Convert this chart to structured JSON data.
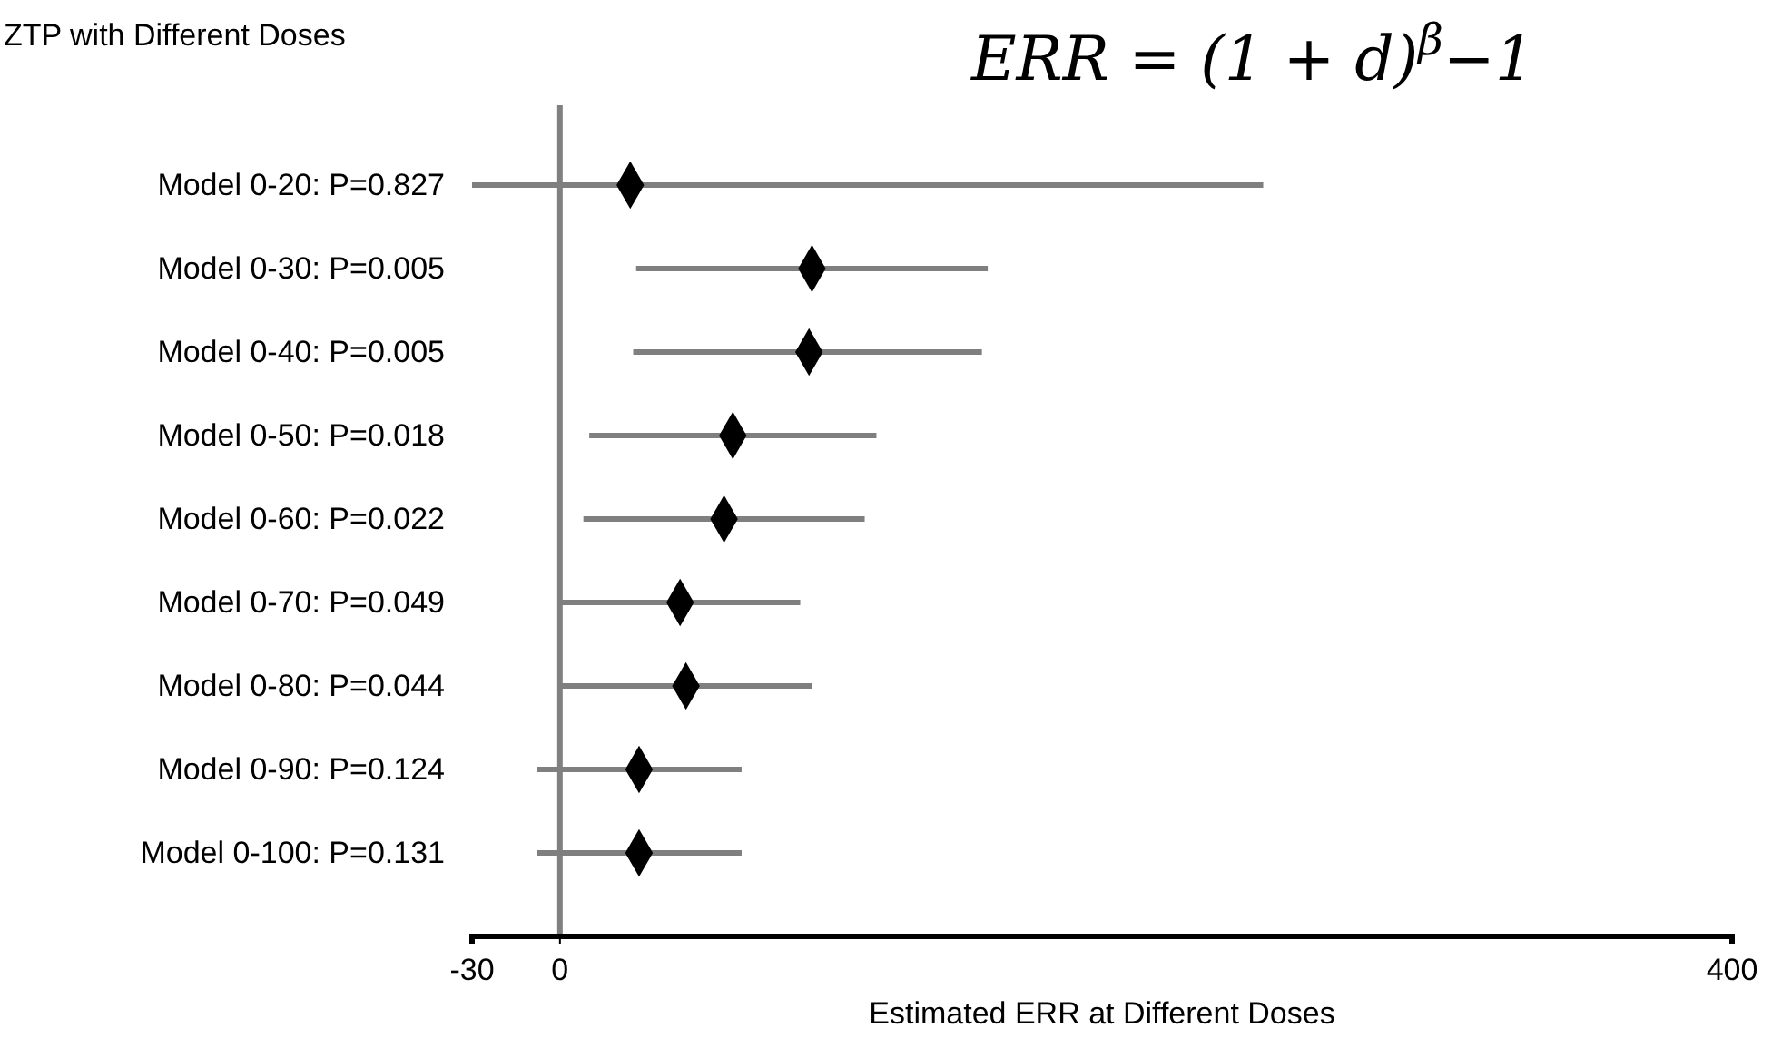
{
  "chart_data": {
    "type": "scatter",
    "title": "ZTP with Different Doses",
    "xlabel": "Estimated ERR at Different Doses",
    "annotations": [
      "ERR = (1 + d)$^{β}$−1"
    ],
    "orientation": "horizontal",
    "categories": [
      "Model 0-20: P=0.827",
      "Model 0-30: P=0.005",
      "Model 0-40: P=0.005",
      "Model 0-50: P=0.018",
      "Model 0-60: P=0.022",
      "Model 0-70: P=0.049",
      "Model 0-80: P=0.044",
      "Model 0-90: P=0.124",
      "Model 0-100: P=0.131"
    ],
    "values": [
      24,
      86,
      85,
      59,
      56,
      41,
      43,
      27,
      27
    ],
    "errors": [
      [
        -30,
        240
      ],
      [
        26,
        146
      ],
      [
        25,
        144
      ],
      [
        10,
        108
      ],
      [
        8,
        104
      ],
      [
        0,
        82
      ],
      [
        0,
        86
      ],
      [
        -8,
        62
      ],
      [
        -8,
        62
      ]
    ],
    "color": "#000000",
    "marker": "diamond",
    "xlim": [
      -30,
      400
    ],
    "xticks": [
      -30,
      0,
      400
    ],
    "ref_lines": [
      {
        "axis": "x",
        "value": 0,
        "color": "#808080"
      }
    ],
    "grid": false
  }
}
